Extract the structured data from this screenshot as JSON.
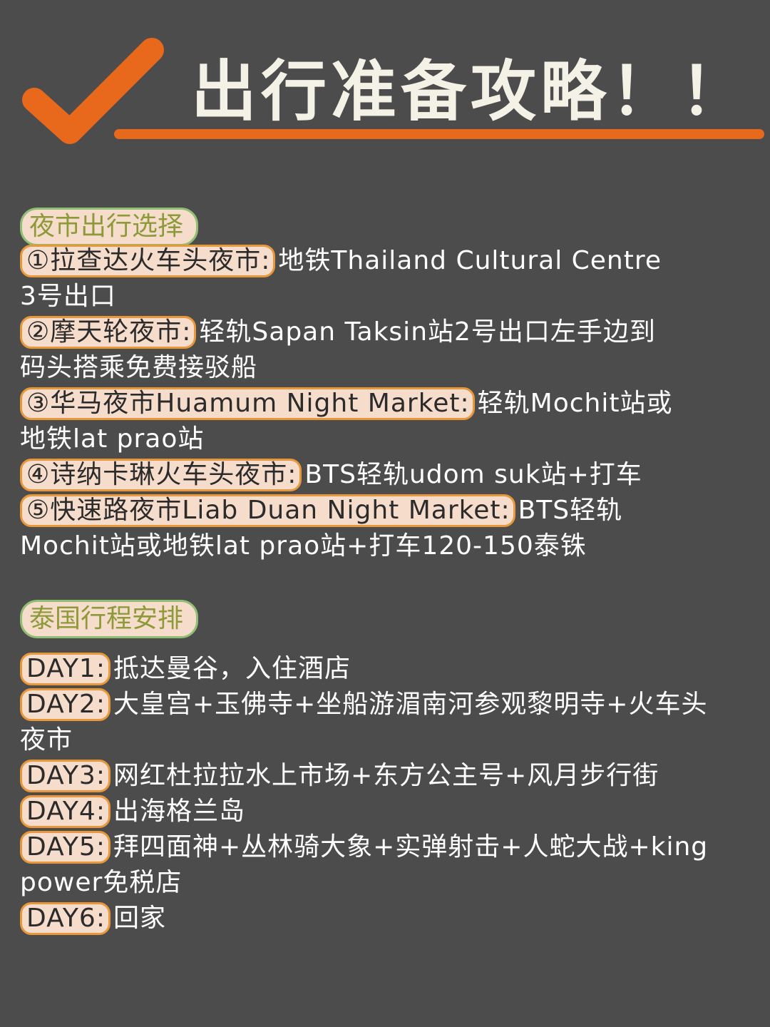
{
  "header": {
    "title": "出行准备攻略！！"
  },
  "night_market": {
    "heading": "夜市出行选择",
    "items": [
      {
        "label": "①拉查达火车头夜市:",
        "text1": "地铁Thailand Cultural Centre",
        "text2": "3号出口"
      },
      {
        "label": "②摩天轮夜市:",
        "text1": "轻轨Sapan Taksin站2号出口左手边到",
        "text2": "码头搭乘免费接驳船"
      },
      {
        "label": "③华马夜市Huamum Night Market:",
        "text1": "轻轨Mochit站或",
        "text2": "地铁lat prao站"
      },
      {
        "label": "④诗纳卡琳火车头夜市:",
        "text1": "BTS轻轨udom suk站+打车",
        "text2": ""
      },
      {
        "label": "⑤快速路夜市Liab Duan Night Market:",
        "text1": "BTS轻轨",
        "text2": "Mochit站或地铁lat prao站+打车120-150泰铢"
      }
    ]
  },
  "itinerary": {
    "heading": "泰国行程安排",
    "days": [
      {
        "label": "DAY1:",
        "text1": "抵达曼谷，入住酒店",
        "text2": ""
      },
      {
        "label": "DAY2:",
        "text1": "大皇宫+玉佛寺+坐船游湄南河参观黎明寺+火车头",
        "text2": "夜市"
      },
      {
        "label": "DAY3:",
        "text1": "网红杜拉拉水上市场+东方公主号+风月步行街",
        "text2": ""
      },
      {
        "label": "DAY4:",
        "text1": "出海格兰岛",
        "text2": ""
      },
      {
        "label": "DAY5:",
        "text1": "拜四面神+丛林骑大象+实弹射击+人蛇大战+king",
        "text2": "power免税店"
      },
      {
        "label": "DAY6:",
        "text1": "回家",
        "text2": ""
      }
    ]
  },
  "colors": {
    "background": "#4c4c4c",
    "accent_orange": "#e8681c",
    "highlight_fill": "#f6dccb",
    "highlight_border": "#e8983a",
    "heading_border": "#8fbe74"
  },
  "icons": {
    "header_icon": "checkmark-icon"
  }
}
